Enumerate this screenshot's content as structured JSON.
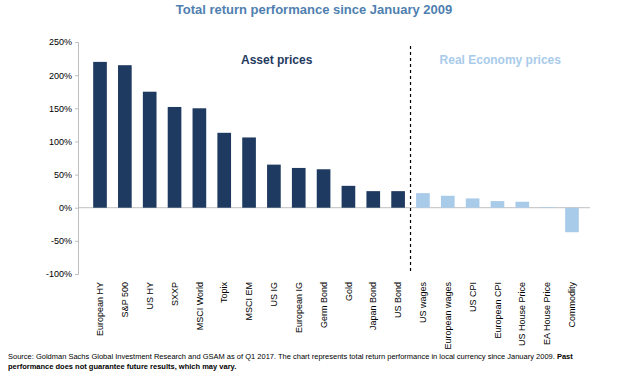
{
  "chart_data": {
    "type": "bar",
    "title": "Total return performance since January 2009",
    "categories": [
      "European HY",
      "S&P 500",
      "US HY",
      "SXXP",
      "MSCI World",
      "Topix",
      "MSCI EM",
      "US IG",
      "European IG",
      "Germ Bond",
      "Gold",
      "Japan Bond",
      "US Bond",
      "US wages",
      "European wages",
      "US CPI",
      "European CPI",
      "US House Price",
      "EA House Price",
      "Commodity"
    ],
    "values": [
      220,
      215,
      175,
      152,
      150,
      113,
      106,
      65,
      60,
      58,
      33,
      25,
      25,
      22,
      18,
      14,
      10,
      9,
      1,
      -37
    ],
    "colors": [
      "#1f3a60",
      "#1f3a60",
      "#1f3a60",
      "#1f3a60",
      "#1f3a60",
      "#1f3a60",
      "#1f3a60",
      "#1f3a60",
      "#1f3a60",
      "#1f3a60",
      "#1f3a60",
      "#1f3a60",
      "#1f3a60",
      "#a9cbea",
      "#a9cbea",
      "#a9cbea",
      "#a9cbea",
      "#a9cbea",
      "#a9cbea",
      "#a9cbea"
    ],
    "ylim": [
      -100,
      250
    ],
    "yticks": [
      {
        "value": -100,
        "label": "-100%"
      },
      {
        "value": -50,
        "label": "-50%"
      },
      {
        "value": 0,
        "label": "0%"
      },
      {
        "value": 50,
        "label": "50%"
      },
      {
        "value": 100,
        "label": "100%"
      },
      {
        "value": 150,
        "label": "150%"
      },
      {
        "value": 200,
        "label": "200%"
      },
      {
        "value": 250,
        "label": "250%"
      }
    ],
    "grid": false,
    "annotations": [
      "Asset prices",
      "Real Economy prices"
    ],
    "source": [
      "Source: Goldman Sachs Global Investment Research and GSAM as of Q1 2017. The chart represents total return performance in local currency since January 2009. ",
      "Past performance does not guarantee future results, which may vary."
    ]
  }
}
